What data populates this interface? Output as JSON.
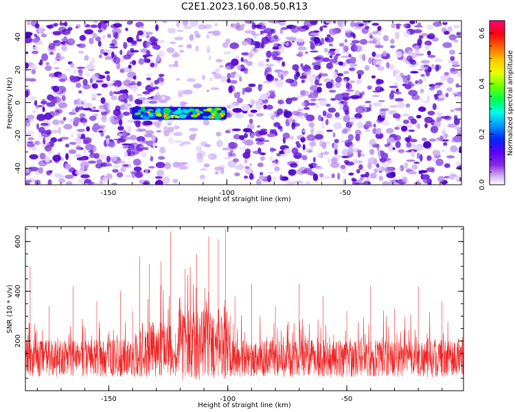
{
  "title": "C2E1.2023.160.08.50.R13",
  "chart_data": [
    {
      "type": "heatmap",
      "xlabel": "Height of straight line (km)",
      "ylabel": "Frequency (Hz)",
      "xlim": [
        -185,
        -1
      ],
      "ylim": [
        -50,
        50
      ],
      "xticks": [
        -150,
        -100,
        -50
      ],
      "yticks": [
        -40,
        -20,
        0,
        20,
        40
      ],
      "colorbar": {
        "label": "Normalized spectral amplitude",
        "range": [
          0,
          0.65
        ],
        "ticks": [
          0,
          0.2,
          0.4,
          0.6
        ],
        "tick_labels": [
          "0.0",
          "0.2",
          "0.4",
          "0.6"
        ]
      },
      "features": [
        {
          "label": "high-amplitude band",
          "x_range": [
            -140,
            -100
          ],
          "freq_range": [
            -10,
            -3
          ],
          "peak_amplitude": 0.5
        },
        {
          "label": "low-noise gap",
          "x_range": [
            -125,
            -100
          ]
        }
      ],
      "grid": false
    },
    {
      "type": "line",
      "xlabel": "Height of straight line (km)",
      "ylabel": "SNR (10 * v/v)",
      "xlim": [
        -185,
        -1
      ],
      "ylim": [
        0,
        660
      ],
      "xticks": [
        -150,
        -100,
        -50
      ],
      "yticks": [
        200,
        400,
        600
      ],
      "series": [
        {
          "color": "#ee2222",
          "baseline_mean": 130,
          "x": [
            -185,
            -183,
            -175,
            -165,
            -155,
            -145,
            -140,
            -137,
            -133,
            -128,
            -124,
            -122,
            -118,
            -113,
            -108,
            -104,
            -101,
            -99,
            -97,
            -90,
            -80,
            -70,
            -60,
            -50,
            -40,
            -30,
            -20,
            -10,
            -1
          ],
          "y": [
            150,
            500,
            340,
            420,
            360,
            400,
            320,
            540,
            510,
            520,
            640,
            230,
            490,
            550,
            620,
            610,
            650,
            300,
            380,
            430,
            340,
            430,
            380,
            320,
            420,
            330,
            420,
            360,
            300
          ]
        }
      ],
      "grid": false
    }
  ]
}
